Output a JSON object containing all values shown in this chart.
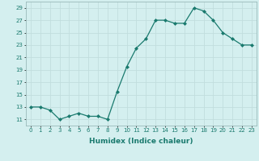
{
  "x": [
    0,
    1,
    2,
    3,
    4,
    5,
    6,
    7,
    8,
    9,
    10,
    11,
    12,
    13,
    14,
    15,
    16,
    17,
    18,
    19,
    20,
    21,
    22,
    23
  ],
  "y": [
    13,
    13,
    12.5,
    11,
    11.5,
    12,
    11.5,
    11.5,
    11,
    15.5,
    19.5,
    22.5,
    24,
    27,
    27,
    26.5,
    26.5,
    29,
    28.5,
    27,
    25,
    24,
    23,
    23
  ],
  "line_color": "#1a7a6e",
  "marker_color": "#1a7a6e",
  "bg_color": "#d4efef",
  "grid_color": "#c2dede",
  "xlabel": "Humidex (Indice chaleur)",
  "xlim": [
    -0.5,
    23.5
  ],
  "ylim": [
    10,
    30
  ],
  "yticks": [
    11,
    13,
    15,
    17,
    19,
    21,
    23,
    25,
    27,
    29
  ],
  "xticks": [
    0,
    1,
    2,
    3,
    4,
    5,
    6,
    7,
    8,
    9,
    10,
    11,
    12,
    13,
    14,
    15,
    16,
    17,
    18,
    19,
    20,
    21,
    22,
    23
  ],
  "tick_fontsize": 5.0,
  "xlabel_fontsize": 6.5
}
